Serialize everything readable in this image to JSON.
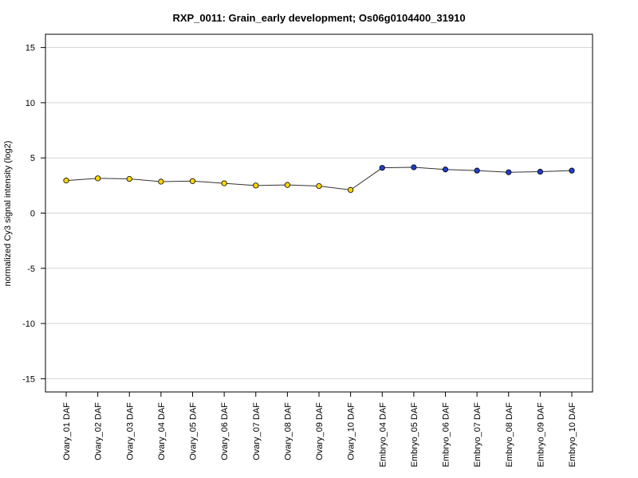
{
  "chart_data": {
    "type": "line",
    "title": "RXP_0011: Grain_early development; Os06g0104400_31910",
    "xlabel": "",
    "ylabel": "normalized Cy3 signal intensity (log2)",
    "ylim": [
      -16.2,
      16.2
    ],
    "yticks": [
      -15,
      -10,
      -5,
      0,
      5,
      10,
      15
    ],
    "grid": true,
    "categories": [
      "Ovary_01 DAF",
      "Ovary_02 DAF",
      "Ovary_03 DAF",
      "Ovary_04 DAF",
      "Ovary_05 DAF",
      "Ovary_06 DAF",
      "Ovary_07 DAF",
      "Ovary_08 DAF",
      "Ovary_09 DAF",
      "Ovary_10 DAF",
      "Embryo_04 DAF",
      "Embryo_05 DAF",
      "Embryo_06 DAF",
      "Embryo_07 DAF",
      "Embryo_08 DAF",
      "Embryo_09 DAF",
      "Embryo_10 DAF"
    ],
    "series": [
      {
        "values": [
          2.95,
          3.15,
          3.1,
          2.85,
          2.9,
          2.7,
          2.5,
          2.55,
          2.45,
          2.1,
          4.1,
          4.15,
          3.95,
          3.85,
          3.7,
          3.75,
          3.85
        ],
        "colors": [
          "#ffd700",
          "#ffd700",
          "#ffd700",
          "#ffd700",
          "#ffd700",
          "#ffd700",
          "#ffd700",
          "#ffd700",
          "#ffd700",
          "#ffd700",
          "#1f3fcc",
          "#1f3fcc",
          "#1f3fcc",
          "#1f3fcc",
          "#1f3fcc",
          "#1f3fcc",
          "#1f3fcc"
        ]
      }
    ]
  }
}
